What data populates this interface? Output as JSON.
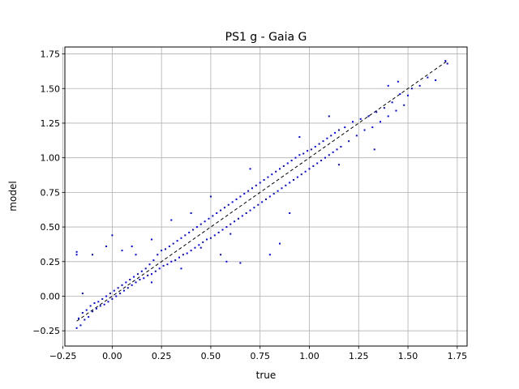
{
  "chart_data": {
    "type": "scatter",
    "title": "PS1 g - Gaia G",
    "xlabel": "true",
    "ylabel": "model",
    "xlim": [
      -0.24,
      1.8
    ],
    "ylim": [
      -0.36,
      1.8
    ],
    "xticks": [
      -0.25,
      0.0,
      0.25,
      0.5,
      0.75,
      1.0,
      1.25,
      1.5,
      1.75
    ],
    "xtick_labels": [
      "−0.25",
      "0.00",
      "0.25",
      "0.50",
      "0.75",
      "1.00",
      "1.25",
      "1.50",
      "1.75"
    ],
    "yticks": [
      -0.25,
      0.0,
      0.25,
      0.5,
      0.75,
      1.0,
      1.25,
      1.5,
      1.75
    ],
    "ytick_labels": [
      "−0.25",
      "0.00",
      "0.25",
      "0.50",
      "0.75",
      "1.00",
      "1.25",
      "1.50",
      "1.75"
    ],
    "grid": true,
    "marker_color": "#0000ff",
    "reference_line": {
      "x": [
        -0.18,
        1.7
      ],
      "y": [
        -0.18,
        1.7
      ],
      "color": "#000000",
      "style": "dashed"
    },
    "series": [
      {
        "values": [
          [
            -0.18,
            -0.23
          ],
          [
            -0.17,
            -0.16
          ],
          [
            -0.16,
            -0.21
          ],
          [
            -0.15,
            -0.12
          ],
          [
            -0.14,
            -0.17
          ],
          [
            -0.13,
            -0.1
          ],
          [
            -0.12,
            -0.15
          ],
          [
            -0.11,
            -0.07
          ],
          [
            -0.1,
            -0.11
          ],
          [
            -0.09,
            -0.05
          ],
          [
            -0.08,
            -0.09
          ],
          [
            -0.07,
            -0.04
          ],
          [
            -0.06,
            -0.07
          ],
          [
            -0.05,
            -0.02
          ],
          [
            -0.04,
            -0.06
          ],
          [
            -0.03,
            0.0
          ],
          [
            -0.02,
            -0.04
          ],
          [
            -0.01,
            0.02
          ],
          [
            0.0,
            -0.02
          ],
          [
            0.01,
            0.04
          ],
          [
            0.02,
            0.0
          ],
          [
            0.03,
            0.06
          ],
          [
            0.04,
            0.02
          ],
          [
            0.05,
            0.08
          ],
          [
            0.06,
            0.04
          ],
          [
            0.07,
            0.1
          ],
          [
            0.08,
            0.06
          ],
          [
            0.09,
            0.12
          ],
          [
            0.1,
            0.08
          ],
          [
            0.11,
            0.14
          ],
          [
            0.12,
            0.1
          ],
          [
            0.13,
            0.16
          ],
          [
            0.14,
            0.12
          ],
          [
            0.15,
            0.18
          ],
          [
            0.16,
            0.13
          ],
          [
            0.17,
            0.2
          ],
          [
            0.18,
            0.15
          ],
          [
            0.19,
            0.23
          ],
          [
            0.2,
            0.16
          ],
          [
            0.21,
            0.26
          ],
          [
            0.22,
            0.18
          ],
          [
            0.23,
            0.3
          ],
          [
            0.24,
            0.2
          ],
          [
            0.25,
            0.33
          ],
          [
            0.26,
            0.22
          ],
          [
            0.27,
            0.34
          ],
          [
            0.28,
            0.23
          ],
          [
            0.29,
            0.36
          ],
          [
            0.3,
            0.25
          ],
          [
            0.31,
            0.38
          ],
          [
            0.32,
            0.26
          ],
          [
            0.33,
            0.4
          ],
          [
            0.34,
            0.28
          ],
          [
            0.35,
            0.42
          ],
          [
            0.36,
            0.3
          ],
          [
            0.37,
            0.44
          ],
          [
            0.38,
            0.31
          ],
          [
            0.39,
            0.46
          ],
          [
            0.4,
            0.33
          ],
          [
            0.41,
            0.48
          ],
          [
            0.42,
            0.35
          ],
          [
            0.43,
            0.5
          ],
          [
            0.44,
            0.37
          ],
          [
            0.45,
            0.52
          ],
          [
            0.46,
            0.39
          ],
          [
            0.47,
            0.54
          ],
          [
            0.48,
            0.41
          ],
          [
            0.49,
            0.56
          ],
          [
            0.5,
            0.42
          ],
          [
            0.51,
            0.58
          ],
          [
            0.52,
            0.44
          ],
          [
            0.53,
            0.6
          ],
          [
            0.54,
            0.46
          ],
          [
            0.55,
            0.62
          ],
          [
            0.56,
            0.48
          ],
          [
            0.57,
            0.64
          ],
          [
            0.58,
            0.5
          ],
          [
            0.59,
            0.66
          ],
          [
            0.6,
            0.52
          ],
          [
            0.61,
            0.68
          ],
          [
            0.62,
            0.54
          ],
          [
            0.63,
            0.7
          ],
          [
            0.64,
            0.56
          ],
          [
            0.65,
            0.72
          ],
          [
            0.66,
            0.58
          ],
          [
            0.67,
            0.74
          ],
          [
            0.68,
            0.6
          ],
          [
            0.69,
            0.76
          ],
          [
            0.7,
            0.62
          ],
          [
            0.71,
            0.78
          ],
          [
            0.72,
            0.64
          ],
          [
            0.73,
            0.8
          ],
          [
            0.74,
            0.66
          ],
          [
            0.75,
            0.82
          ],
          [
            0.76,
            0.68
          ],
          [
            0.77,
            0.84
          ],
          [
            0.78,
            0.7
          ],
          [
            0.79,
            0.86
          ],
          [
            0.8,
            0.72
          ],
          [
            0.81,
            0.88
          ],
          [
            0.82,
            0.74
          ],
          [
            0.83,
            0.9
          ],
          [
            0.84,
            0.76
          ],
          [
            0.85,
            0.92
          ],
          [
            0.86,
            0.78
          ],
          [
            0.87,
            0.94
          ],
          [
            0.88,
            0.8
          ],
          [
            0.89,
            0.96
          ],
          [
            0.9,
            0.82
          ],
          [
            0.91,
            0.98
          ],
          [
            0.92,
            0.84
          ],
          [
            0.93,
            1.0
          ],
          [
            0.94,
            0.86
          ],
          [
            0.95,
            1.02
          ],
          [
            0.96,
            0.88
          ],
          [
            0.97,
            1.03
          ],
          [
            0.98,
            0.9
          ],
          [
            0.99,
            1.05
          ],
          [
            1.0,
            0.92
          ],
          [
            1.01,
            1.06
          ],
          [
            1.02,
            0.94
          ],
          [
            1.03,
            1.08
          ],
          [
            1.04,
            0.96
          ],
          [
            1.05,
            1.1
          ],
          [
            1.06,
            0.98
          ],
          [
            1.07,
            1.12
          ],
          [
            1.08,
            1.0
          ],
          [
            1.09,
            1.14
          ],
          [
            1.1,
            1.02
          ],
          [
            1.11,
            1.16
          ],
          [
            1.12,
            1.04
          ],
          [
            1.13,
            1.18
          ],
          [
            1.14,
            1.06
          ],
          [
            1.15,
            1.2
          ],
          [
            1.16,
            1.08
          ],
          [
            1.18,
            1.22
          ],
          [
            1.2,
            1.12
          ],
          [
            1.22,
            1.26
          ],
          [
            1.24,
            1.16
          ],
          [
            1.26,
            1.28
          ],
          [
            1.28,
            1.2
          ],
          [
            1.3,
            1.3
          ],
          [
            1.32,
            1.22
          ],
          [
            1.34,
            1.33
          ],
          [
            1.36,
            1.26
          ],
          [
            1.38,
            1.36
          ],
          [
            1.4,
            1.3
          ],
          [
            1.42,
            1.4
          ],
          [
            1.44,
            1.34
          ],
          [
            1.46,
            1.46
          ],
          [
            1.48,
            1.38
          ],
          [
            1.5,
            1.45
          ],
          [
            1.52,
            1.5
          ],
          [
            1.56,
            1.52
          ],
          [
            1.6,
            1.58
          ],
          [
            1.64,
            1.56
          ],
          [
            1.69,
            1.7
          ],
          [
            1.7,
            1.68
          ],
          [
            -0.18,
            0.3
          ],
          [
            -0.18,
            0.32
          ],
          [
            -0.1,
            0.3
          ],
          [
            -0.03,
            0.36
          ],
          [
            0.0,
            0.44
          ],
          [
            0.05,
            0.33
          ],
          [
            0.1,
            0.36
          ],
          [
            0.12,
            0.3
          ],
          [
            0.2,
            0.41
          ],
          [
            0.3,
            0.55
          ],
          [
            0.35,
            0.2
          ],
          [
            0.45,
            0.35
          ],
          [
            0.55,
            0.3
          ],
          [
            0.58,
            0.25
          ],
          [
            0.65,
            0.24
          ],
          [
            0.8,
            0.3
          ],
          [
            0.85,
            0.38
          ],
          [
            0.9,
            0.6
          ],
          [
            1.15,
            0.95
          ],
          [
            1.33,
            1.06
          ],
          [
            1.4,
            1.52
          ],
          [
            1.45,
            1.55
          ],
          [
            -0.15,
            0.02
          ],
          [
            0.4,
            0.6
          ],
          [
            0.5,
            0.72
          ],
          [
            0.7,
            0.92
          ],
          [
            0.95,
            1.15
          ],
          [
            1.1,
            1.3
          ],
          [
            0.2,
            0.1
          ],
          [
            0.6,
            0.45
          ]
        ]
      }
    ]
  }
}
